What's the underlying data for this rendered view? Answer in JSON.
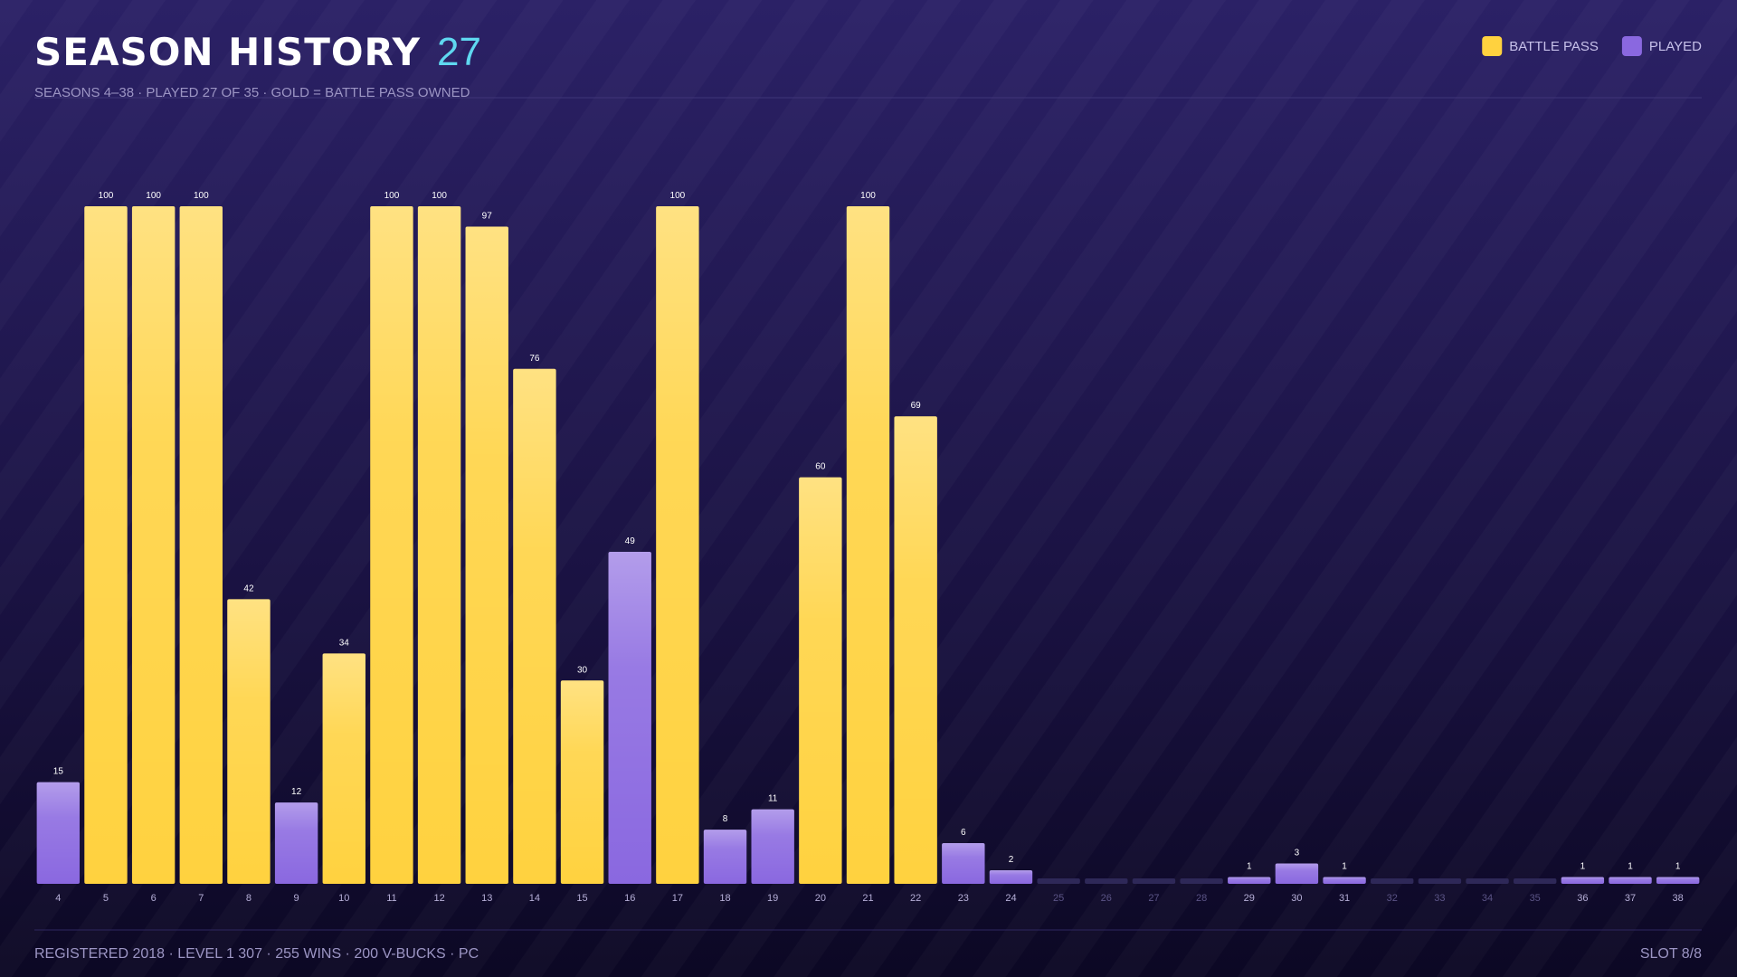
{
  "chart_data": {
    "type": "bar",
    "title": "SEASON HISTORY",
    "title_count": "27",
    "subtitle": "SEASONS 4–38 · PLAYED 27 OF 35 · GOLD = BATTLE PASS OWNED",
    "footer_left": "REGISTERED 2018 · LEVEL 1 307 · 255 WINS · 200 V-BUCKS · PC",
    "footer_right": "SLOT 8/8",
    "categories": [
      "4",
      "5",
      "6",
      "7",
      "8",
      "9",
      "10",
      "11",
      "12",
      "13",
      "14",
      "15",
      "16",
      "17",
      "18",
      "19",
      "20",
      "21",
      "22",
      "23",
      "24",
      "25",
      "26",
      "27",
      "28",
      "29",
      "30",
      "31",
      "32",
      "33",
      "34",
      "35",
      "36",
      "37",
      "38"
    ],
    "series": [
      {
        "name": "BATTLE PASS",
        "color": "#ffd23f",
        "values": [
          null,
          100,
          100,
          100,
          42,
          null,
          34,
          100,
          100,
          97,
          76,
          30,
          null,
          100,
          null,
          null,
          60,
          100,
          69,
          null,
          null,
          null,
          null,
          null,
          null,
          null,
          null,
          null,
          null,
          null,
          null,
          null,
          null,
          null,
          null
        ]
      },
      {
        "name": "PLAYED",
        "color": "#8a68e0",
        "values": [
          15,
          null,
          null,
          null,
          null,
          12,
          null,
          null,
          null,
          null,
          null,
          null,
          49,
          null,
          8,
          11,
          null,
          null,
          null,
          6,
          2,
          null,
          null,
          null,
          null,
          1,
          3,
          1,
          null,
          null,
          null,
          null,
          1,
          1,
          1
        ]
      }
    ],
    "legend": "top-right"
  }
}
